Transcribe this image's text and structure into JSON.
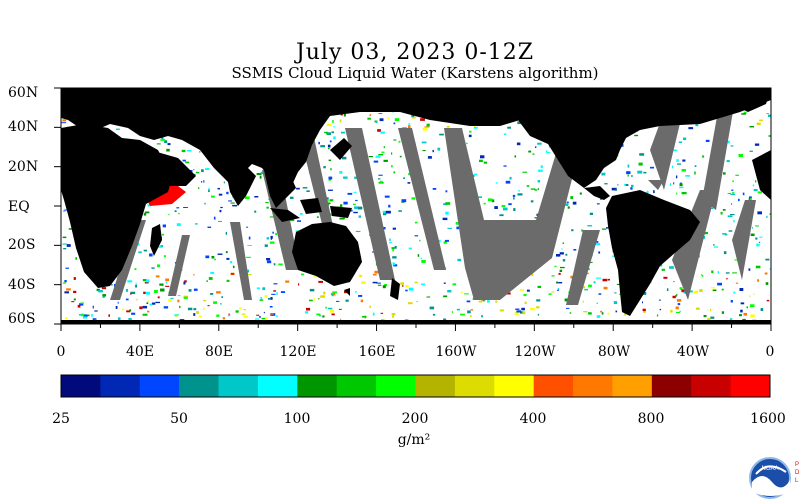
{
  "header": {
    "title": "July 03, 2023 0-12Z",
    "subtitle": "SSMIS Cloud Liquid Water (Karstens algorithm)"
  },
  "map": {
    "lat_labels": [
      "60N",
      "40N",
      "20N",
      "EQ",
      "20S",
      "40S",
      "60S"
    ],
    "lon_labels": [
      "0",
      "40E",
      "80E",
      "120E",
      "160E",
      "160W",
      "120W",
      "80W",
      "40W",
      "0"
    ],
    "colors": {
      "land": "#000000",
      "no_data": "#6b6b6b",
      "ocean_clear": "#ffffff"
    }
  },
  "colorbar": {
    "tick_labels": [
      "25",
      "50",
      "100",
      "200",
      "400",
      "800",
      "1600"
    ],
    "unit": "g/m²",
    "colors": [
      "#000a7a",
      "#0028b4",
      "#0046ff",
      "#00928c",
      "#00c8c8",
      "#00ffff",
      "#009600",
      "#00c800",
      "#00ff00",
      "#b4b400",
      "#dcdc00",
      "#ffff00",
      "#ff5000",
      "#ff7800",
      "#ffa000",
      "#8c0000",
      "#c80000",
      "#ff0000"
    ]
  },
  "logo": {
    "text": "NOAA",
    "side_text": "PDL"
  }
}
